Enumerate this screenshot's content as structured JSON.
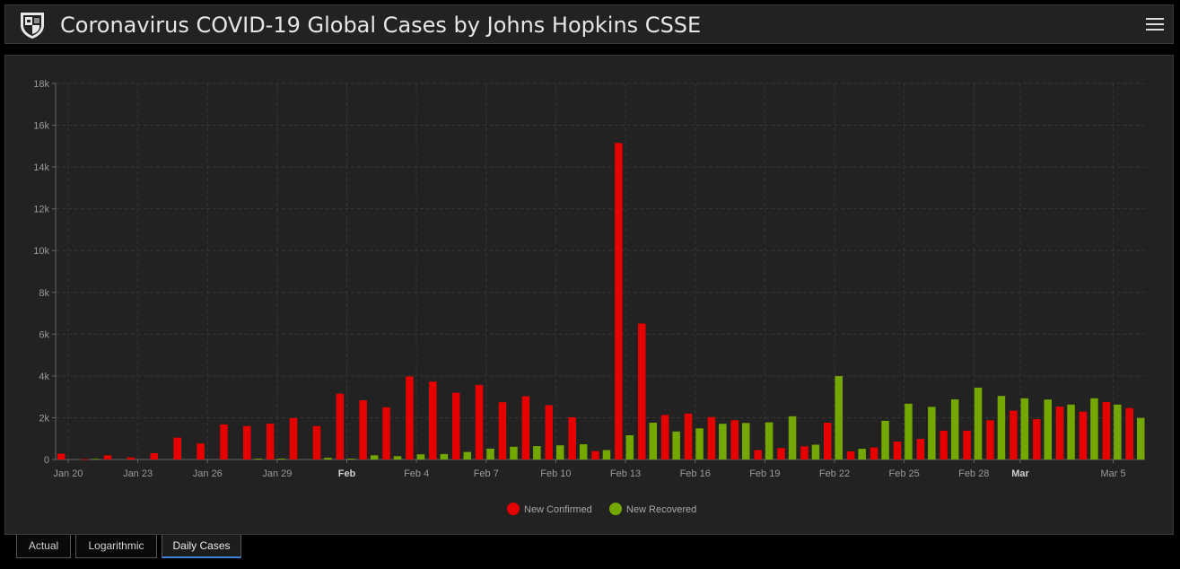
{
  "header": {
    "title": "Coronavirus COVID-19 Global Cases by Johns Hopkins CSSE",
    "logo_icon": "shield-icon",
    "menu_icon": "hamburger-menu-icon"
  },
  "tabs": [
    {
      "label": "Actual",
      "active": false
    },
    {
      "label": "Logarithmic",
      "active": false
    },
    {
      "label": "Daily Cases",
      "active": true
    }
  ],
  "chart_data": {
    "type": "bar",
    "x": [
      "Jan 20",
      "Jan 21",
      "Jan 22",
      "Jan 23",
      "Jan 24",
      "Jan 25",
      "Jan 26",
      "Jan 27",
      "Jan 28",
      "Jan 29",
      "Jan 30",
      "Jan 31",
      "Feb 1",
      "Feb 2",
      "Feb 3",
      "Feb 4",
      "Feb 5",
      "Feb 6",
      "Feb 7",
      "Feb 8",
      "Feb 9",
      "Feb 10",
      "Feb 11",
      "Feb 12",
      "Feb 13",
      "Feb 14",
      "Feb 15",
      "Feb 16",
      "Feb 17",
      "Feb 18",
      "Feb 19",
      "Feb 20",
      "Feb 21",
      "Feb 22",
      "Feb 23",
      "Feb 24",
      "Feb 25",
      "Feb 26",
      "Feb 27",
      "Feb 28",
      "Feb 29",
      "Mar 1",
      "Mar 2",
      "Mar 3",
      "Mar 4",
      "Mar 5",
      "Mar 6"
    ],
    "tick_labels": [
      "Jan 20",
      "Jan 23",
      "Jan 26",
      "Jan 29",
      "Feb",
      "Feb 4",
      "Feb 7",
      "Feb 10",
      "Feb 13",
      "Feb 16",
      "Feb 19",
      "Feb 22",
      "Feb 25",
      "Feb 28",
      "Mar",
      "Mar 5"
    ],
    "bold_tick_labels": [
      "Feb",
      "Mar"
    ],
    "series": [
      {
        "name": "New Confirmed",
        "color": "#e60000",
        "values": [
          280,
          20,
          200,
          100,
          300,
          1050,
          770,
          1680,
          1600,
          1720,
          1980,
          1600,
          3150,
          2830,
          2500,
          3980,
          3730,
          3190,
          3570,
          2740,
          3030,
          2600,
          2020,
          400,
          15150,
          6510,
          2130,
          2200,
          2030,
          1880,
          450,
          550,
          630,
          1760,
          390,
          580,
          860,
          990,
          1380,
          1380,
          1880,
          2340,
          1930,
          2530,
          2290,
          2750,
          2460
        ]
      },
      {
        "name": "New Recovered",
        "color": "#74a800",
        "values": [
          0,
          30,
          0,
          0,
          0,
          0,
          0,
          0,
          40,
          40,
          0,
          80,
          40,
          200,
          160,
          250,
          260,
          360,
          520,
          610,
          640,
          680,
          730,
          450,
          1160,
          1760,
          1340,
          1490,
          1710,
          1750,
          1780,
          2070,
          710,
          3990,
          510,
          1850,
          2670,
          2520,
          2880,
          3440,
          3040,
          2930,
          2870,
          2630,
          2930,
          2630,
          1990
        ]
      }
    ],
    "ylim": [
      0,
      18000
    ],
    "yticks": [
      0,
      2000,
      4000,
      6000,
      8000,
      10000,
      12000,
      14000,
      16000,
      18000
    ],
    "ytick_labels": [
      "0",
      "2k",
      "4k",
      "6k",
      "8k",
      "10k",
      "12k",
      "14k",
      "16k",
      "18k"
    ],
    "grid": true,
    "legend_placement": "bottom-center"
  }
}
